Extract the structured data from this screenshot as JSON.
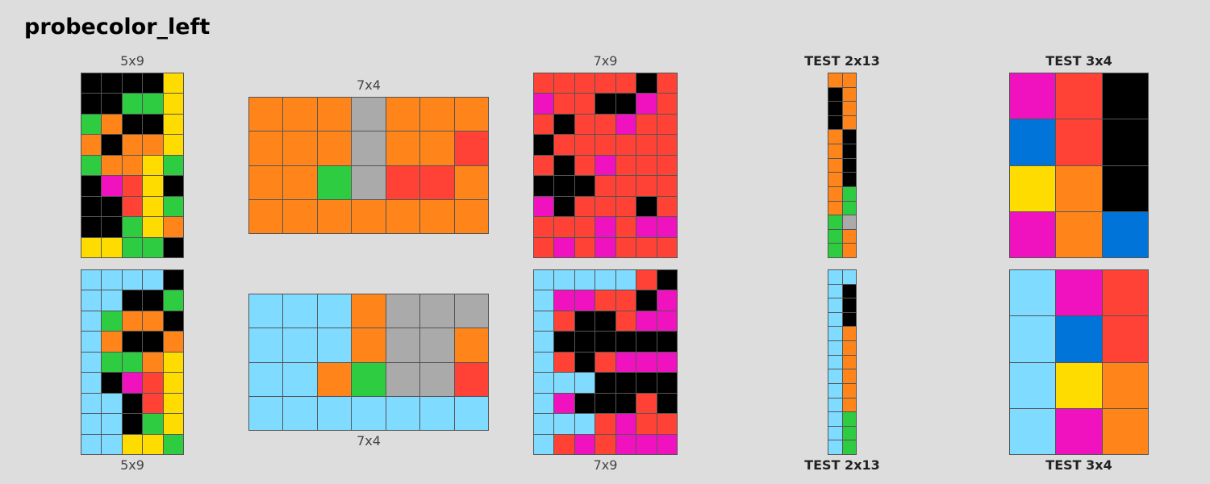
{
  "title": "probecolor_left",
  "palette": {
    "0": "#000000",
    "1": "#0074D9",
    "2": "#FF4136",
    "3": "#2ECC40",
    "4": "#FFDC00",
    "5": "#AAAAAA",
    "6": "#F012BE",
    "7": "#FF851B",
    "8": "#7FDBFF"
  },
  "grids": [
    {
      "id": "pair1-input",
      "label": "5x9",
      "test": false,
      "rows": [
        [
          0,
          0,
          0,
          0,
          4
        ],
        [
          0,
          0,
          3,
          3,
          4
        ],
        [
          3,
          7,
          0,
          0,
          4
        ],
        [
          7,
          0,
          7,
          7,
          4
        ],
        [
          3,
          7,
          7,
          4,
          3
        ],
        [
          0,
          6,
          2,
          4,
          0
        ],
        [
          0,
          0,
          2,
          4,
          3
        ],
        [
          0,
          0,
          3,
          4,
          7
        ],
        [
          4,
          4,
          3,
          3,
          0
        ]
      ]
    },
    {
      "id": "pair1-output",
      "label": "5x9",
      "test": false,
      "rows": [
        [
          8,
          8,
          8,
          8,
          0
        ],
        [
          8,
          8,
          0,
          0,
          3
        ],
        [
          8,
          3,
          7,
          7,
          0
        ],
        [
          8,
          7,
          0,
          0,
          7
        ],
        [
          8,
          3,
          3,
          7,
          4
        ],
        [
          8,
          0,
          6,
          2,
          4
        ],
        [
          8,
          8,
          0,
          2,
          4
        ],
        [
          8,
          8,
          0,
          3,
          4
        ],
        [
          8,
          8,
          4,
          4,
          3
        ]
      ]
    },
    {
      "id": "pair2-input",
      "label": "7x4",
      "test": false,
      "rows": [
        [
          7,
          7,
          7,
          5,
          7,
          7,
          7
        ],
        [
          7,
          7,
          7,
          5,
          7,
          7,
          2
        ],
        [
          7,
          7,
          3,
          5,
          2,
          2,
          7
        ],
        [
          7,
          7,
          7,
          7,
          7,
          7,
          7
        ]
      ]
    },
    {
      "id": "pair2-output",
      "label": "7x4",
      "test": false,
      "rows": [
        [
          8,
          8,
          8,
          7,
          5,
          5,
          5
        ],
        [
          8,
          8,
          8,
          7,
          5,
          5,
          7
        ],
        [
          8,
          8,
          7,
          3,
          5,
          5,
          2
        ],
        [
          8,
          8,
          8,
          8,
          8,
          8,
          8
        ]
      ]
    },
    {
      "id": "pair3-input",
      "label": "7x9",
      "test": false,
      "rows": [
        [
          2,
          2,
          2,
          2,
          2,
          0,
          2
        ],
        [
          6,
          2,
          2,
          0,
          0,
          6,
          2
        ],
        [
          2,
          0,
          2,
          2,
          6,
          2,
          2
        ],
        [
          0,
          2,
          2,
          2,
          2,
          2,
          2
        ],
        [
          2,
          0,
          2,
          6,
          2,
          2,
          2
        ],
        [
          0,
          0,
          0,
          2,
          2,
          2,
          2
        ],
        [
          6,
          0,
          2,
          2,
          2,
          0,
          2
        ],
        [
          2,
          2,
          2,
          6,
          2,
          6,
          6
        ],
        [
          2,
          6,
          2,
          6,
          2,
          2,
          2
        ]
      ]
    },
    {
      "id": "pair3-output",
      "label": "7x9",
      "test": false,
      "rows": [
        [
          8,
          8,
          8,
          8,
          8,
          2,
          0
        ],
        [
          8,
          6,
          6,
          2,
          2,
          0,
          6
        ],
        [
          8,
          2,
          0,
          0,
          2,
          6,
          6
        ],
        [
          8,
          0,
          0,
          0,
          0,
          0,
          0
        ],
        [
          8,
          2,
          0,
          2,
          6,
          6,
          6
        ],
        [
          8,
          8,
          8,
          0,
          0,
          0,
          0
        ],
        [
          8,
          6,
          0,
          0,
          0,
          2,
          0
        ],
        [
          8,
          8,
          8,
          2,
          6,
          2,
          2
        ],
        [
          8,
          2,
          6,
          2,
          6,
          6,
          6
        ]
      ]
    },
    {
      "id": "test1-input",
      "label": "TEST 2x13",
      "test": true,
      "rows": [
        [
          7,
          7
        ],
        [
          0,
          7
        ],
        [
          0,
          7
        ],
        [
          0,
          7
        ],
        [
          7,
          0
        ],
        [
          7,
          0
        ],
        [
          7,
          0
        ],
        [
          7,
          0
        ],
        [
          7,
          3
        ],
        [
          7,
          3
        ],
        [
          3,
          5
        ],
        [
          3,
          7
        ],
        [
          3,
          7
        ]
      ]
    },
    {
      "id": "test1-output",
      "label": "TEST 2x13",
      "test": true,
      "rows": [
        [
          8,
          8
        ],
        [
          8,
          0
        ],
        [
          8,
          0
        ],
        [
          8,
          0
        ],
        [
          8,
          7
        ],
        [
          8,
          7
        ],
        [
          8,
          7
        ],
        [
          8,
          7
        ],
        [
          8,
          7
        ],
        [
          8,
          7
        ],
        [
          8,
          3
        ],
        [
          8,
          3
        ],
        [
          8,
          3
        ]
      ]
    },
    {
      "id": "test2-input",
      "label": "TEST 3x4",
      "test": true,
      "rows": [
        [
          6,
          2,
          0
        ],
        [
          1,
          2,
          0
        ],
        [
          4,
          7,
          0
        ],
        [
          6,
          7,
          1
        ]
      ]
    },
    {
      "id": "test2-output",
      "label": "TEST 3x4",
      "test": true,
      "rows": [
        [
          8,
          6,
          2
        ],
        [
          8,
          1,
          2
        ],
        [
          8,
          4,
          7
        ],
        [
          8,
          6,
          7
        ]
      ]
    }
  ]
}
